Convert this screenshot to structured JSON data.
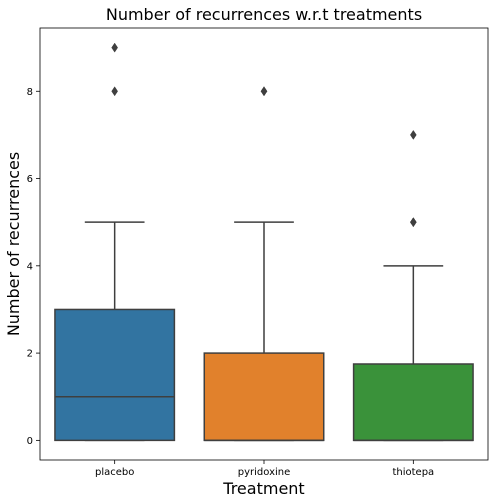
{
  "chart_data": {
    "type": "box",
    "title": "Number of recurrences w.r.t treatments",
    "xlabel": "Treatment",
    "ylabel": "Number of recurrences",
    "categories": [
      "placebo",
      "pyridoxine",
      "thiotepa"
    ],
    "colors": [
      "#3274a1",
      "#e1812c",
      "#3a923a"
    ],
    "edge_color": "#3f3f3f",
    "ylim": [
      -0.45,
      9.45
    ],
    "yticks": [
      0,
      2,
      4,
      6,
      8
    ],
    "grid": false,
    "boxes": [
      {
        "name": "placebo",
        "min": 0,
        "q1": 0,
        "median": 1,
        "q3": 3,
        "max": 5,
        "outliers": [
          8,
          9
        ]
      },
      {
        "name": "pyridoxine",
        "min": 0,
        "q1": 0,
        "median": 0,
        "q3": 2,
        "max": 5,
        "outliers": [
          8,
          8
        ]
      },
      {
        "name": "thiotepa",
        "min": 0,
        "q1": 0,
        "median": 0,
        "q3": 1.75,
        "max": 4,
        "outliers": [
          5,
          5,
          7
        ]
      }
    ]
  }
}
